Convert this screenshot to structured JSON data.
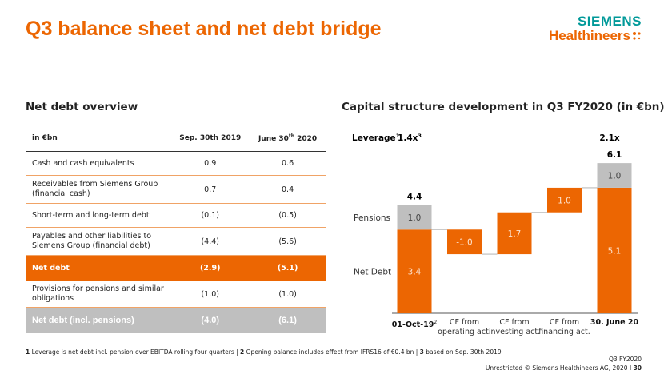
{
  "header": {
    "title": "Q3 balance sheet and net debt bridge",
    "logo": [
      "SIEMENS",
      "Healthineers"
    ]
  },
  "table": {
    "title": "Net debt overview",
    "columns": [
      "in €bn",
      "Sep. 30th 2019",
      {
        "pre": "June 30",
        "sup": "th",
        "post": " 2020"
      }
    ],
    "rows": [
      {
        "cells": [
          "Cash and cash equivalents",
          "0.9",
          "0.6"
        ]
      },
      {
        "cells": [
          "Receivables from Siemens Group (financial cash)",
          "0.7",
          "0.4"
        ]
      },
      {
        "cells": [
          "Short-term and long-term debt",
          "(0.1)",
          "(0.5)"
        ]
      },
      {
        "cells": [
          "Payables and other liabilities to Siemens Group (financial debt)",
          "(4.4)",
          "(5.6)"
        ]
      },
      {
        "cells": [
          "Net debt",
          "(2.9)",
          "(5.1)"
        ],
        "fill": "#ec6602"
      },
      {
        "cells": [
          "Provisions for pensions and similar obligations",
          "(1.0)",
          "(1.0)"
        ]
      },
      {
        "cells": [
          "Net debt (incl. pensions)",
          "(4.0)",
          "(6.1)"
        ],
        "fill": "#bfbfbf"
      }
    ]
  },
  "chart_data": {
    "type": "waterfall",
    "title": "Capital structure development in Q3 FY2020 (in €bn)",
    "categories": [
      "01-Oct-19",
      "CF from operating act.",
      "CF from investing act.",
      "CF from financing act.",
      "30. June 20"
    ],
    "category_notes": [
      "2",
      null,
      null,
      null,
      null
    ],
    "series": [
      {
        "name": "Net Debt",
        "color": "#ec6602",
        "values": [
          3.4,
          -1.0,
          1.7,
          1.0,
          5.1
        ],
        "value_labels": [
          "3.4",
          "-1.0",
          "1.7",
          "1.0",
          "5.1"
        ]
      },
      {
        "name": "Pensions",
        "color": "#bfbfbf",
        "values": [
          1.0,
          null,
          null,
          null,
          1.0
        ],
        "value_labels": [
          "1.0",
          null,
          null,
          null,
          "1.0"
        ]
      }
    ],
    "totals": [
      4.4,
      null,
      null,
      null,
      6.1
    ],
    "leverage_label": "Leverage",
    "leverage_label_note": "1",
    "leverage": [
      "1.4x",
      null,
      null,
      null,
      "2.1x"
    ],
    "leverage_notes": [
      "3",
      null,
      null,
      null,
      null
    ]
  },
  "footer": {
    "notes": [
      {
        "num": "1",
        "text": "Leverage is net debt incl. pension over EBITDA rolling four quarters |"
      },
      {
        "num": "2",
        "text": "Opening balance includes effect from IFRS16 of €0.4 bn |"
      },
      {
        "num": "3",
        "text": "based on Sep. 30th 2019"
      }
    ],
    "meta": "Q3 FY2020",
    "copyright": "Unrestricted © Siemens Healthineers AG, 2020 I",
    "page": "30"
  }
}
